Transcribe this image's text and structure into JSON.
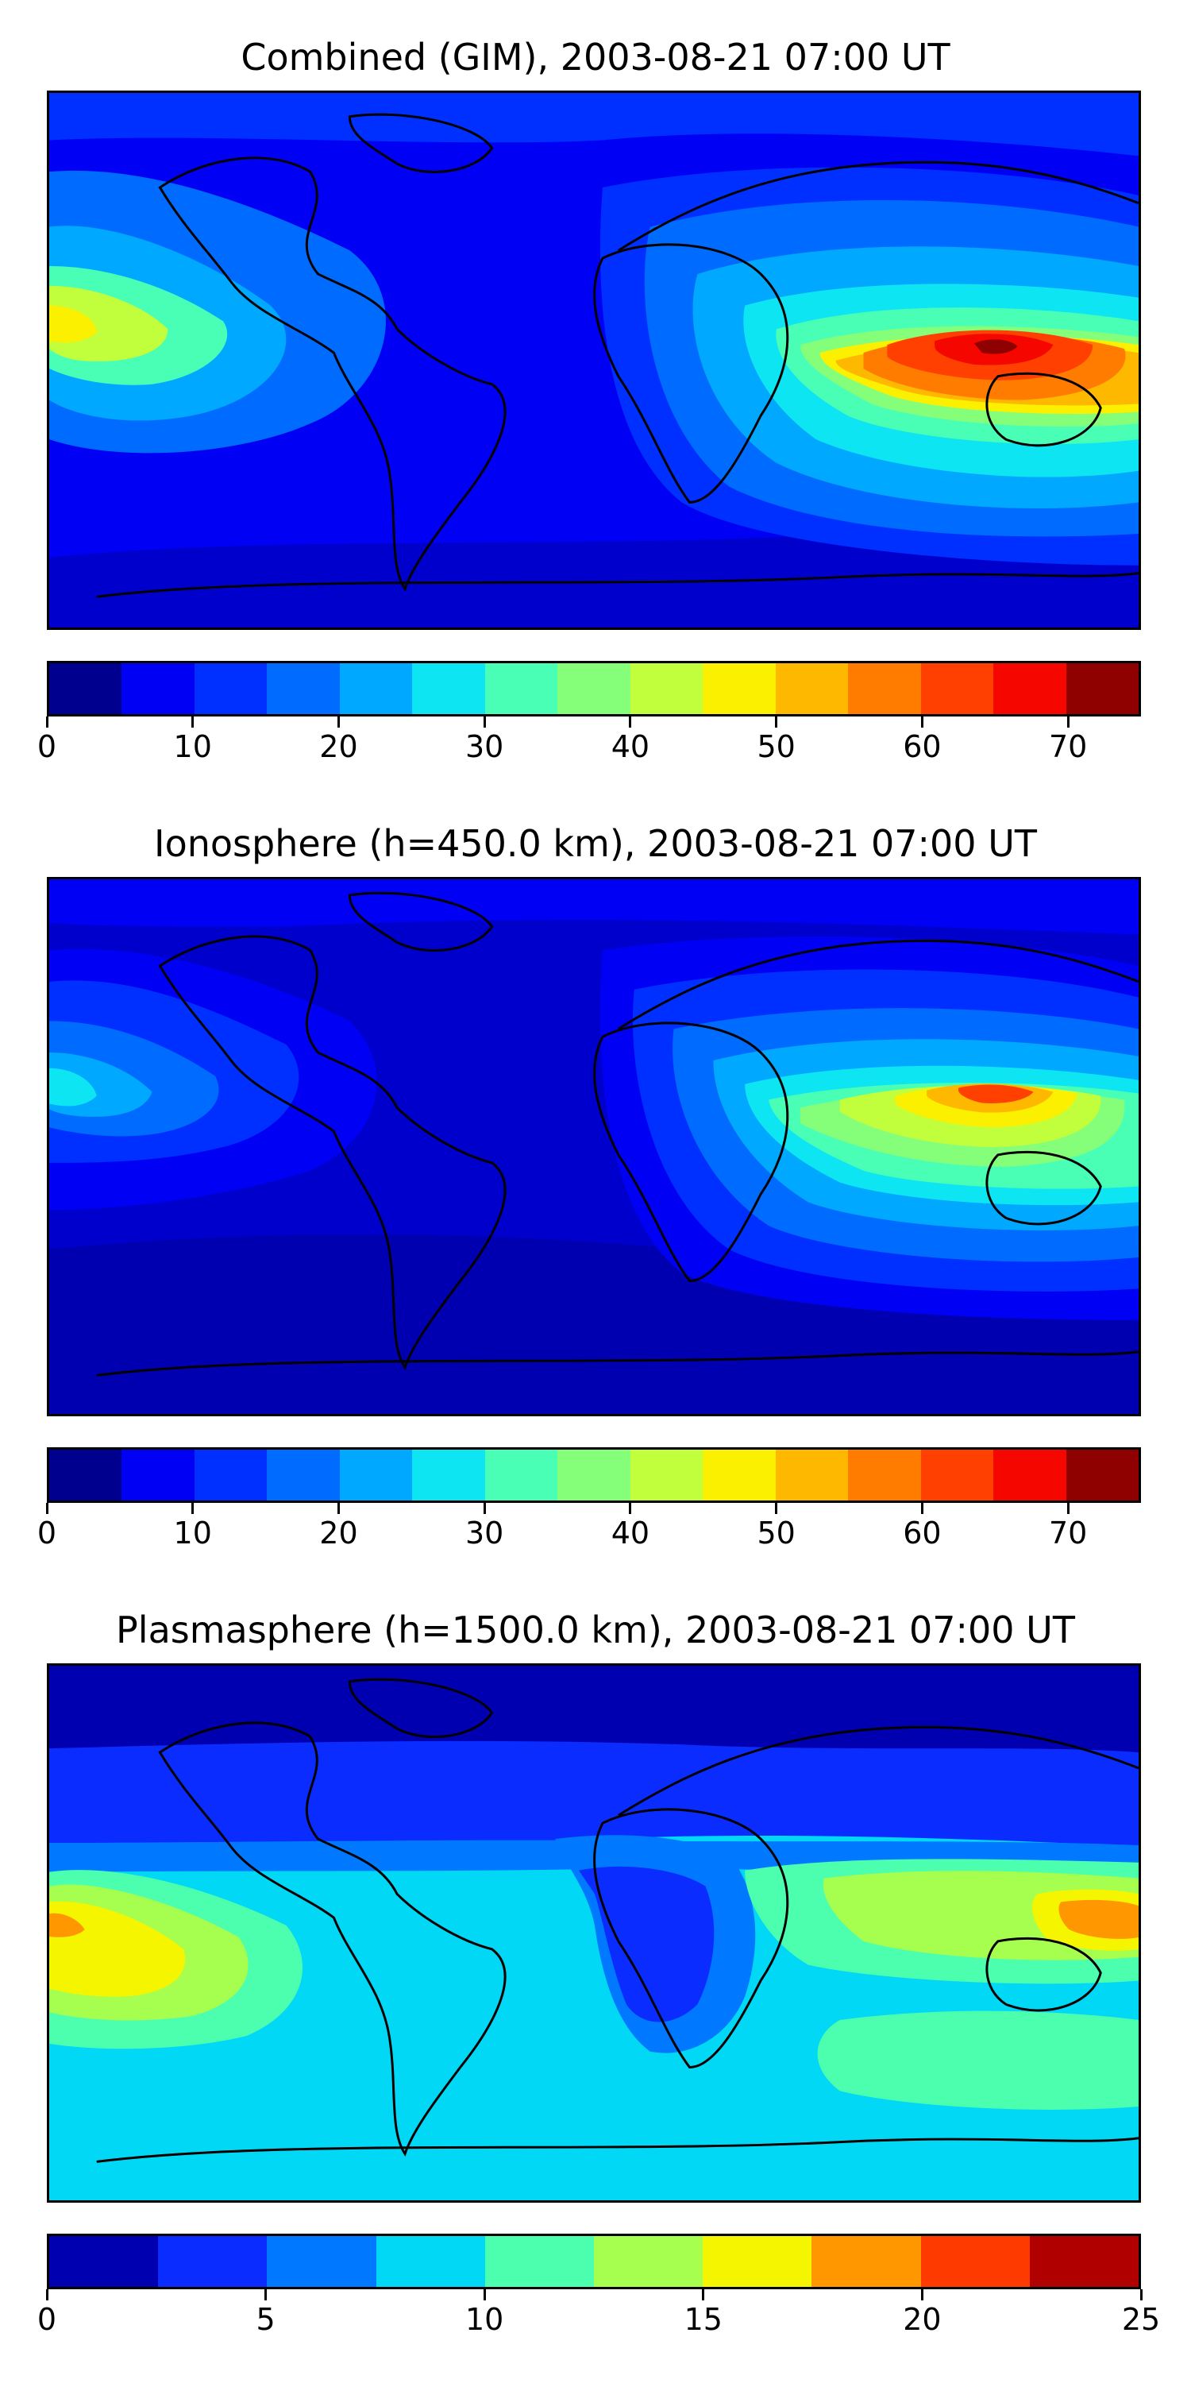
{
  "panels": [
    {
      "title": "Combined (GIM), 2003-08-21 07:00 UT",
      "colorbar": {
        "colors": [
          "#00008f",
          "#0000f5",
          "#0030ff",
          "#006cff",
          "#00a8ff",
          "#0de5f2",
          "#49ffb5",
          "#85ff79",
          "#c1ff3d",
          "#fbf000",
          "#ffb800",
          "#ff7c00",
          "#ff4000",
          "#f50700",
          "#8f0000"
        ],
        "ticks": [
          "0",
          "10",
          "20",
          "30",
          "40",
          "50",
          "60",
          "70"
        ],
        "min": 0,
        "max": 75,
        "step": 10
      }
    },
    {
      "title": "Ionosphere  (h=450.0 km), 2003-08-21 07:00 UT",
      "colorbar": {
        "colors": [
          "#00008f",
          "#0000f5",
          "#0030ff",
          "#006cff",
          "#00a8ff",
          "#0de5f2",
          "#49ffb5",
          "#85ff79",
          "#c1ff3d",
          "#fbf000",
          "#ffb800",
          "#ff7c00",
          "#ff4000",
          "#f50700",
          "#8f0000"
        ],
        "ticks": [
          "0",
          "10",
          "20",
          "30",
          "40",
          "50",
          "60",
          "70"
        ],
        "min": 0,
        "max": 75,
        "step": 10
      }
    },
    {
      "title": "Plasmasphere (h=1500.0 km), 2003-08-21 07:00 UT",
      "colorbar": {
        "colors": [
          "#0000b0",
          "#0a2cff",
          "#0078ff",
          "#00d8f5",
          "#4cffae",
          "#a6ff4e",
          "#f5f500",
          "#ff9800",
          "#ff3a00",
          "#b00000"
        ],
        "ticks": [
          "0",
          "5",
          "10",
          "15",
          "20",
          "25"
        ],
        "min": 0,
        "max": 25,
        "step": 5
      }
    }
  ]
}
